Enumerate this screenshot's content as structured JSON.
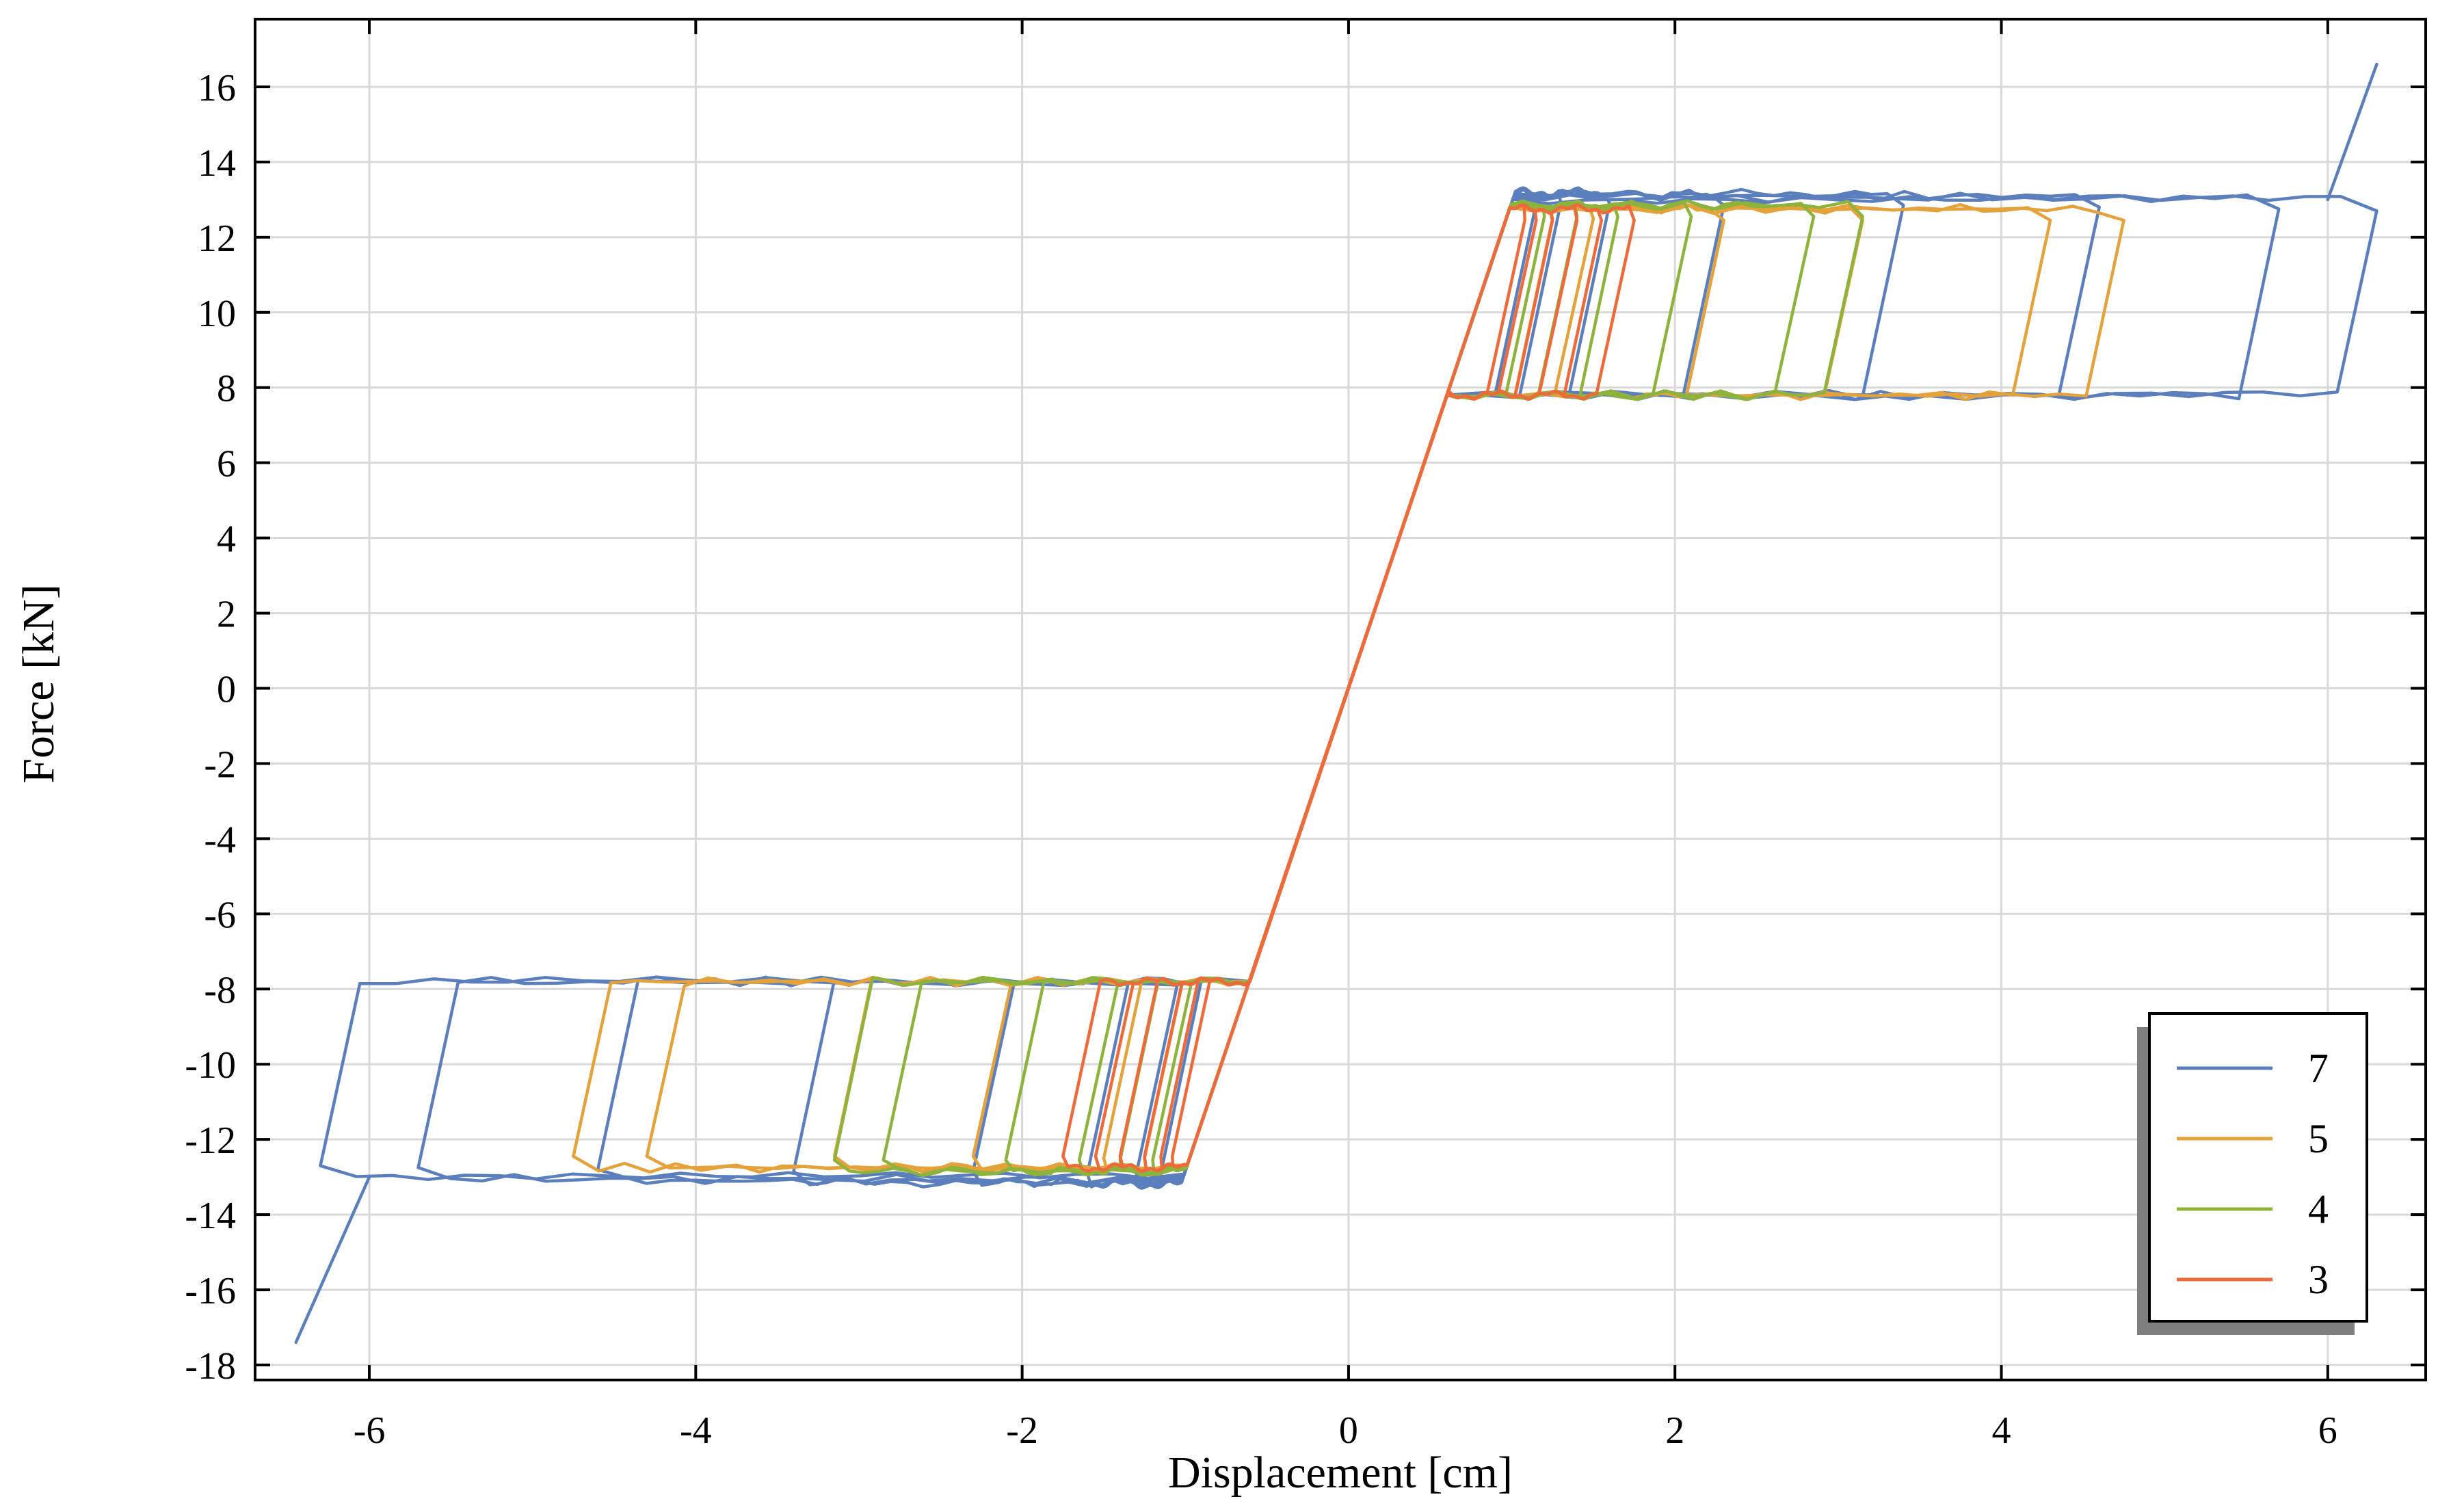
{
  "chart_data": {
    "type": "line",
    "title": "",
    "xlabel": "Displacement [cm]",
    "ylabel": "Force [kN]",
    "xlim": [
      -6.7,
      6.6
    ],
    "ylim": [
      -18.4,
      17.8
    ],
    "xticks": [
      -6,
      -4,
      -2,
      0,
      2,
      4,
      6
    ],
    "yticks": [
      -18,
      -16,
      -14,
      -12,
      -10,
      -8,
      -6,
      -4,
      -2,
      0,
      2,
      4,
      6,
      8,
      10,
      12,
      14,
      16
    ],
    "grid": true,
    "legend_position": "bottom-right",
    "series": [
      {
        "name": "7",
        "color": "#5b7fbd",
        "loops": [
          {
            "d": 6.3,
            "k": 13.0
          },
          {
            "d": 5.7,
            "k": 13.05
          },
          {
            "d": 4.6,
            "k": 13.1
          },
          {
            "d": 3.4,
            "k": 13.15
          },
          {
            "d": 2.3,
            "k": 13.15
          },
          {
            "d": 1.6,
            "k": 13.2
          },
          {
            "d": 1.3,
            "k": 13.2
          },
          {
            "d": 1.15,
            "k": 13.2
          }
        ],
        "end_points": [
          [
            -6.45,
            -17.4
          ],
          [
            6.3,
            16.6
          ]
        ]
      },
      {
        "name": "5",
        "color": "#e5a23a",
        "loops": [
          {
            "d": 4.75,
            "k": 12.75
          },
          {
            "d": 4.3,
            "k": 12.75
          },
          {
            "d": 3.15,
            "k": 12.75
          },
          {
            "d": 2.3,
            "k": 12.75
          },
          {
            "d": 1.5,
            "k": 12.8
          },
          {
            "d": 1.25,
            "k": 12.8
          }
        ]
      },
      {
        "name": "4",
        "color": "#8db33c",
        "loops": [
          {
            "d": 3.15,
            "k": 12.85
          },
          {
            "d": 2.85,
            "k": 12.85
          },
          {
            "d": 2.1,
            "k": 12.85
          },
          {
            "d": 1.65,
            "k": 12.85
          },
          {
            "d": 1.4,
            "k": 12.85
          },
          {
            "d": 1.2,
            "k": 12.85
          }
        ]
      },
      {
        "name": "3",
        "color": "#ee6a3a",
        "loops": [
          {
            "d": 1.75,
            "k": 12.75
          },
          {
            "d": 1.55,
            "k": 12.75
          },
          {
            "d": 1.4,
            "k": 12.75
          },
          {
            "d": 1.25,
            "k": 12.75
          },
          {
            "d": 1.15,
            "k": 12.75
          },
          {
            "d": 1.08,
            "k": 12.75
          }
        ]
      }
    ]
  }
}
